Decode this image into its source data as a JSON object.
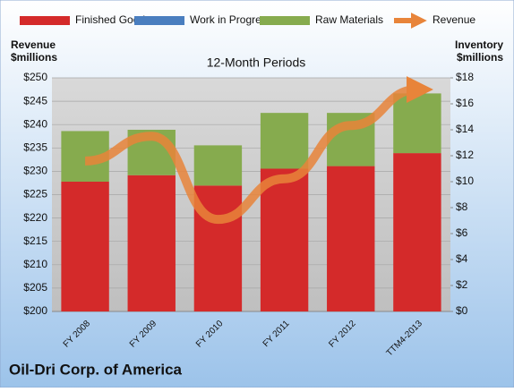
{
  "chart_data": {
    "type": "bar",
    "title": "Oil-Dri Corp. of America",
    "subtitle": "12-Month Periods",
    "y_label": "Revenue\n$millions",
    "y2_label": "Inventory\n$millions",
    "categories": [
      "FY 2008",
      "FY 2009",
      "FY 2010",
      "FY 2011",
      "FY 2012",
      "TTM4-2013"
    ],
    "series": [
      {
        "name": "Finished Goods",
        "type": "bar",
        "axis": "y2",
        "color": "#d42a2a",
        "values": [
          10.0,
          10.5,
          9.7,
          11.0,
          11.2,
          12.2
        ]
      },
      {
        "name": "Work in Progress",
        "type": "bar",
        "axis": "y2",
        "color": "#4a7ebf",
        "values": [
          0,
          0,
          0,
          0,
          0,
          0
        ]
      },
      {
        "name": "Raw Materials",
        "type": "bar",
        "axis": "y2",
        "color": "#86ab4e",
        "values": [
          3.9,
          3.5,
          3.1,
          4.3,
          4.1,
          4.6
        ]
      },
      {
        "name": "Revenue",
        "type": "line",
        "axis": "y",
        "color": "#e8843a",
        "values": [
          232.2,
          237.5,
          219.7,
          228.4,
          239.8,
          247.5
        ]
      }
    ],
    "ylim": [
      200,
      250
    ],
    "yticks": [
      {
        "value": 200,
        "label": "$200"
      },
      {
        "value": 205,
        "label": "$205"
      },
      {
        "value": 210,
        "label": "$210"
      },
      {
        "value": 215,
        "label": "$215"
      },
      {
        "value": 220,
        "label": "$220"
      },
      {
        "value": 225,
        "label": "$225"
      },
      {
        "value": 230,
        "label": "$230"
      },
      {
        "value": 235,
        "label": "$235"
      },
      {
        "value": 240,
        "label": "$240"
      },
      {
        "value": 245,
        "label": "$245"
      },
      {
        "value": 250,
        "label": "$250"
      }
    ],
    "y2lim": [
      0,
      18
    ],
    "y2ticks": [
      {
        "value": 0,
        "label": "$0"
      },
      {
        "value": 2,
        "label": "$2"
      },
      {
        "value": 4,
        "label": "$4"
      },
      {
        "value": 6,
        "label": "$6"
      },
      {
        "value": 8,
        "label": "$8"
      },
      {
        "value": 10,
        "label": "$10"
      },
      {
        "value": 12,
        "label": "$12"
      },
      {
        "value": 14,
        "label": "$14"
      },
      {
        "value": 16,
        "label": "$16"
      },
      {
        "value": 18,
        "label": "$18"
      }
    ],
    "grid": true
  }
}
